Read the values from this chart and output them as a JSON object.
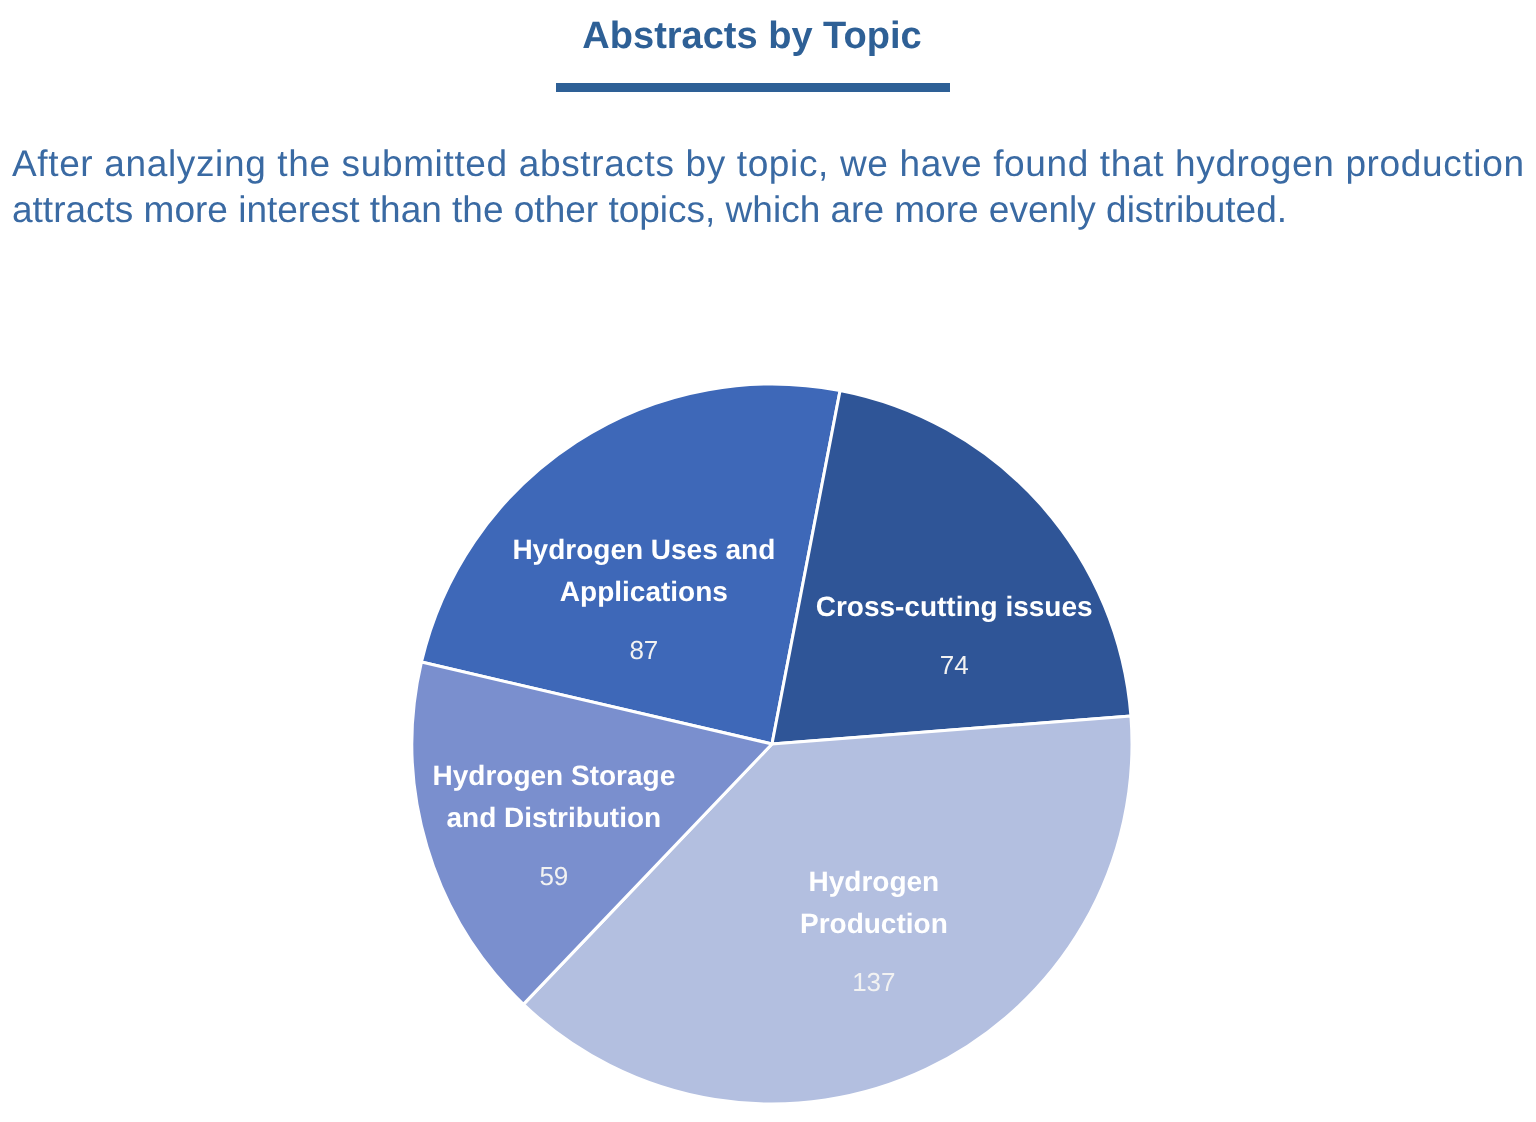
{
  "chart_data": {
    "type": "pie",
    "title": "Abstracts by Topic",
    "subtitle": "After analyzing the submitted abstracts by topic, we have found that hydrogen production attracts more interest than the other topics, which are more evenly distributed.",
    "categories": [
      "Hydrogen Uses and Applications",
      "Cross-cutting issues",
      "Hydrogen Production",
      "Hydrogen Storage and Distribution"
    ],
    "values": [
      87,
      74,
      137,
      59
    ],
    "colors": [
      "#3e68b8",
      "#2f5597",
      "#b3bfe0",
      "#7a8fce"
    ],
    "data_labels": true
  }
}
